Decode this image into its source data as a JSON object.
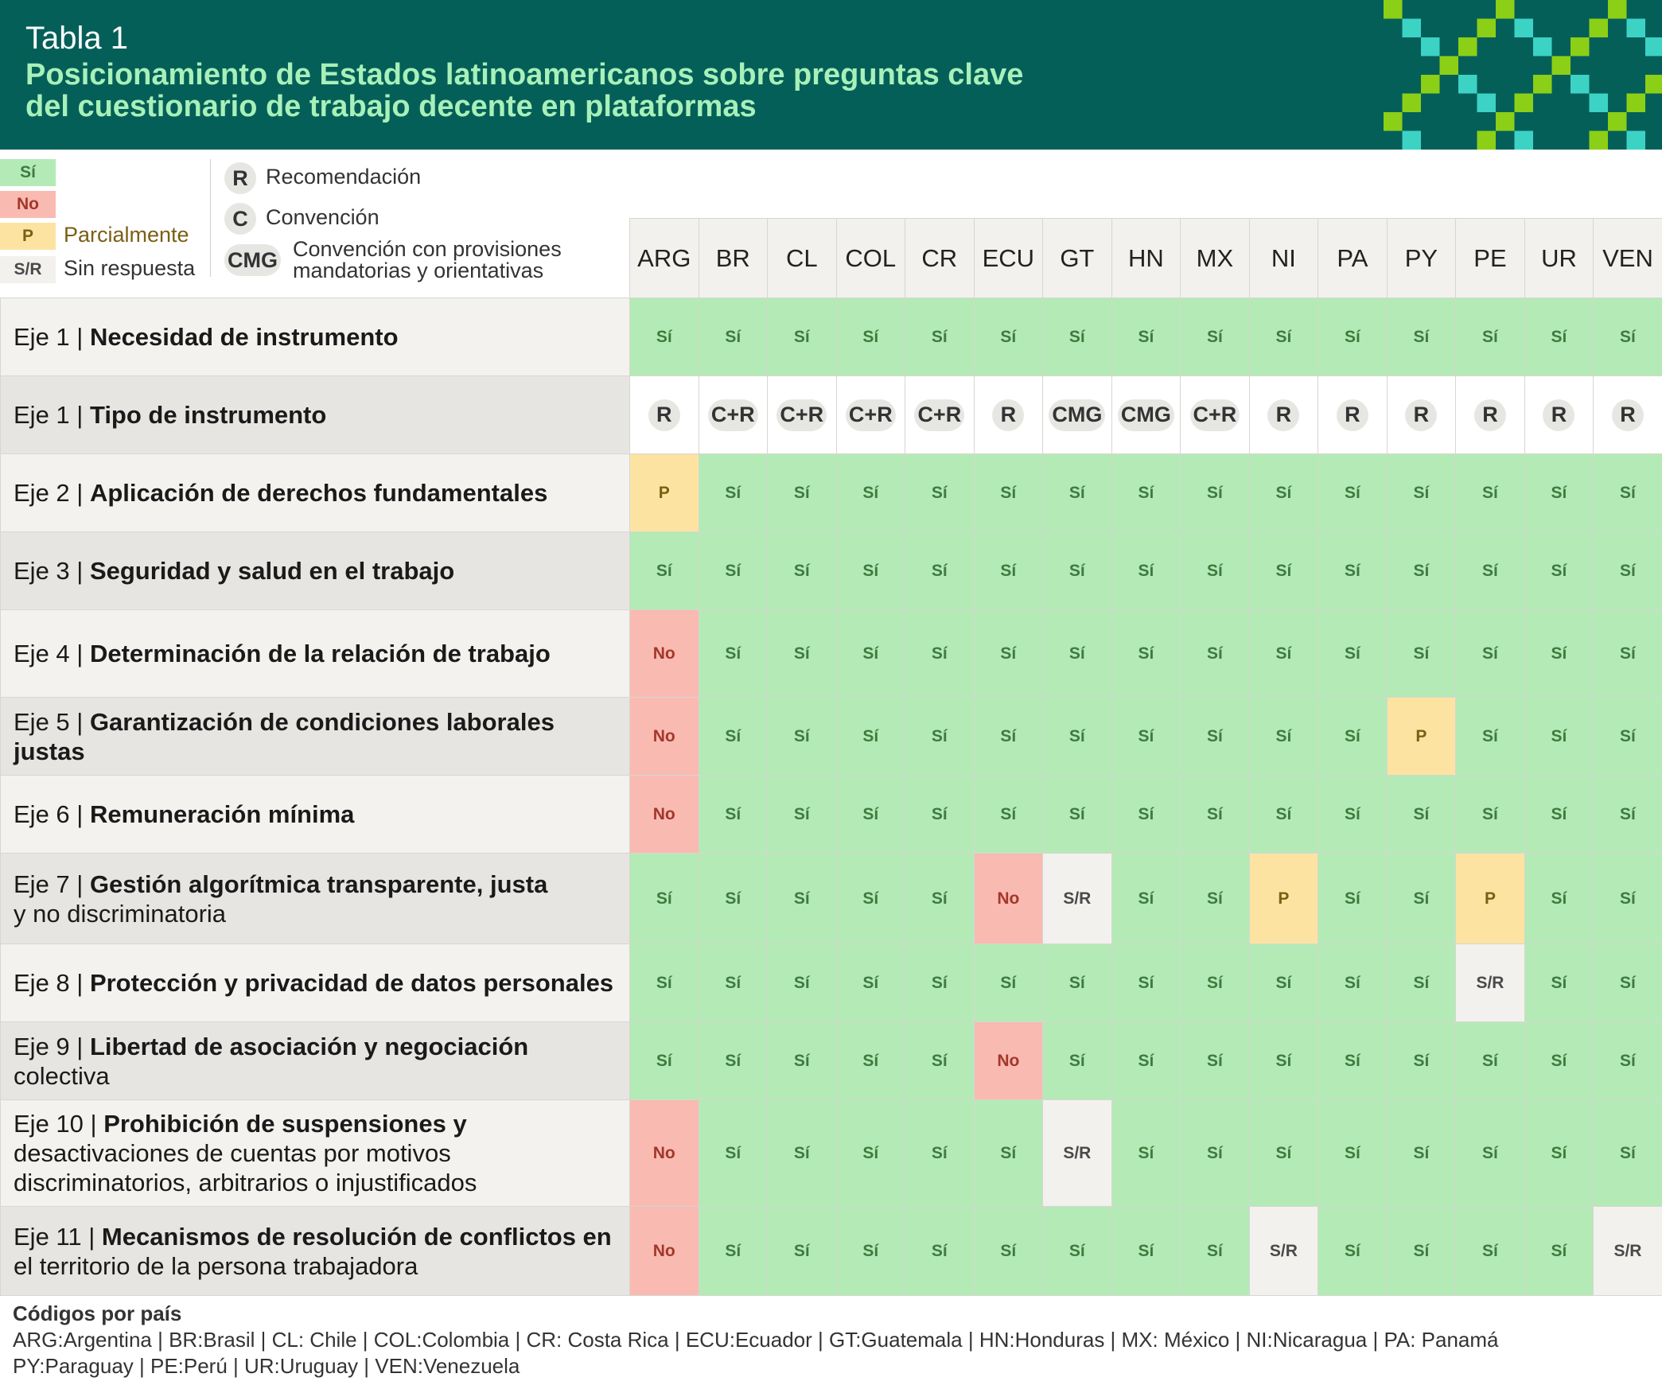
{
  "header": {
    "kicker": "Tabla 1",
    "title_line1": "Posicionamiento de Estados latinoamericanos sobre preguntas clave",
    "title_line2": "del cuestionario de trabajo decente en plataformas"
  },
  "colors": {
    "header_bg": "#055f59",
    "title_text": "#a7f0b8",
    "si": "#b4eab6",
    "no": "#f9bab1",
    "parcial": "#fde3a2",
    "sin_respuesta": "#f2f1ee",
    "pattern_lime": "#8ccf17",
    "pattern_teal": "#3cd3c5"
  },
  "legend": {
    "si_chip": "Sí",
    "no_chip": "No",
    "p_chip": "P",
    "p_label": "Parcialmente",
    "sr_chip": "S/R",
    "sr_label": "Sin respuesta",
    "r_badge": "R",
    "r_label": "Recomendación",
    "c_badge": "C",
    "c_label": "Convención",
    "cmg_badge": "CMG",
    "cmg_label_line1": "Convención con provisiones",
    "cmg_label_line2": "mandatorias y orientativas"
  },
  "countries": [
    "ARG",
    "BR",
    "CL",
    "COL",
    "CR",
    "ECU",
    "GT",
    "HN",
    "MX",
    "NI",
    "PA",
    "PY",
    "PE",
    "UR",
    "VEN"
  ],
  "rows": [
    {
      "eje": "Eje 1 | ",
      "title": "Necesidad de instrumento",
      "values": [
        "Sí",
        "Sí",
        "Sí",
        "Sí",
        "Sí",
        "Sí",
        "Sí",
        "Sí",
        "Sí",
        "Sí",
        "Sí",
        "Sí",
        "Sí",
        "Sí",
        "Sí"
      ]
    },
    {
      "eje": "Eje 1 | ",
      "title": "Tipo de instrumento",
      "badges": true,
      "values": [
        "R",
        "C+R",
        "C+R",
        "C+R",
        "C+R",
        "R",
        "CMG",
        "CMG",
        "C+R",
        "R",
        "R",
        "R",
        "R",
        "R",
        "R"
      ]
    },
    {
      "eje": "Eje 2 | ",
      "title": "Aplicación de derechos fundamentales",
      "values": [
        "P",
        "Sí",
        "Sí",
        "Sí",
        "Sí",
        "Sí",
        "Sí",
        "Sí",
        "Sí",
        "Sí",
        "Sí",
        "Sí",
        "Sí",
        "Sí",
        "Sí"
      ]
    },
    {
      "eje": "Eje 3 | ",
      "title": "Seguridad y salud en el trabajo",
      "values": [
        "Sí",
        "Sí",
        "Sí",
        "Sí",
        "Sí",
        "Sí",
        "Sí",
        "Sí",
        "Sí",
        "Sí",
        "Sí",
        "Sí",
        "Sí",
        "Sí",
        "Sí"
      ]
    },
    {
      "eje": "Eje 4 | ",
      "title": "Determinación de la relación de trabajo",
      "values": [
        "No",
        "Sí",
        "Sí",
        "Sí",
        "Sí",
        "Sí",
        "Sí",
        "Sí",
        "Sí",
        "Sí",
        "Sí",
        "Sí",
        "Sí",
        "Sí",
        "Sí"
      ]
    },
    {
      "eje": "Eje 5 | ",
      "title": "Garantización de condiciones laborales justas",
      "values": [
        "No",
        "Sí",
        "Sí",
        "Sí",
        "Sí",
        "Sí",
        "Sí",
        "Sí",
        "Sí",
        "Sí",
        "Sí",
        "P",
        "Sí",
        "Sí",
        "Sí"
      ]
    },
    {
      "eje": "Eje 6 | ",
      "title": "Remuneración mínima",
      "values": [
        "No",
        "Sí",
        "Sí",
        "Sí",
        "Sí",
        "Sí",
        "Sí",
        "Sí",
        "Sí",
        "Sí",
        "Sí",
        "Sí",
        "Sí",
        "Sí",
        "Sí"
      ]
    },
    {
      "eje": "Eje 7 | ",
      "title": "Gestión algorítmica transparente, justa",
      "title2": "y no discriminatoria",
      "values": [
        "Sí",
        "Sí",
        "Sí",
        "Sí",
        "Sí",
        "No",
        "S/R",
        "Sí",
        "Sí",
        "P",
        "Sí",
        "Sí",
        "P",
        "Sí",
        "Sí"
      ]
    },
    {
      "eje": "Eje 8 | ",
      "title": "Protección y privacidad de datos personales",
      "values": [
        "Sí",
        "Sí",
        "Sí",
        "Sí",
        "Sí",
        "Sí",
        "Sí",
        "Sí",
        "Sí",
        "Sí",
        "Sí",
        "Sí",
        "S/R",
        "Sí",
        "Sí"
      ]
    },
    {
      "eje": "Eje 9 | ",
      "title": "Libertad de asociación y negociación",
      "title2": "colectiva",
      "values": [
        "Sí",
        "Sí",
        "Sí",
        "Sí",
        "Sí",
        "No",
        "Sí",
        "Sí",
        "Sí",
        "Sí",
        "Sí",
        "Sí",
        "Sí",
        "Sí",
        "Sí"
      ]
    },
    {
      "eje": "Eje 10 | ",
      "title": "Prohibición de suspensiones y",
      "title2": "desactivaciones de cuentas por motivos",
      "title3": "discriminatorios, arbitrarios o injustificados",
      "values": [
        "No",
        "Sí",
        "Sí",
        "Sí",
        "Sí",
        "Sí",
        "S/R",
        "Sí",
        "Sí",
        "Sí",
        "Sí",
        "Sí",
        "Sí",
        "Sí",
        "Sí"
      ]
    },
    {
      "eje": "Eje 11 | ",
      "title": "Mecanismos de resolución de conflictos en",
      "title2": "el territorio de la persona trabajadora",
      "values": [
        "No",
        "Sí",
        "Sí",
        "Sí",
        "Sí",
        "Sí",
        "Sí",
        "Sí",
        "Sí",
        "S/R",
        "Sí",
        "Sí",
        "Sí",
        "Sí",
        "S/R"
      ]
    }
  ],
  "footer": {
    "title": "Códigos por país",
    "line1": "ARG:Argentina | BR:Brasil | CL: Chile | COL:Colombia | CR: Costa Rica | ECU:Ecuador | GT:Guatemala | HN:Honduras | MX: México | NI:Nicaragua | PA: Panamá",
    "line2": "PY:Paraguay | PE:Perú | UR:Uruguay | VEN:Venezuela"
  }
}
